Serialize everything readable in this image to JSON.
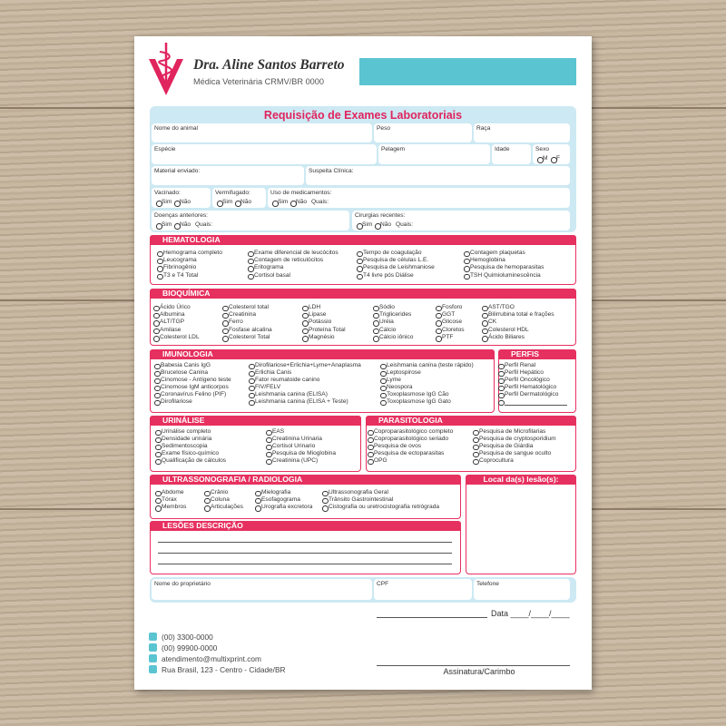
{
  "header": {
    "name": "Dra. Aline Santos Barreto",
    "subtitle": "Médica Veterinária CRMV/BR 0000"
  },
  "form": {
    "title": "Requisição de Exames Laboratoriais",
    "fields": [
      {
        "label": "Nome do animal"
      },
      {
        "label": "Peso"
      },
      {
        "label": "Raça"
      },
      {
        "label": "Espécie"
      },
      {
        "label": "Pelagem"
      },
      {
        "label": "Idade"
      },
      {
        "label": "Sexo",
        "options": [
          "M",
          "F"
        ]
      },
      {
        "label": "Material enviado:"
      },
      {
        "label": "Suspeita Clínica:"
      },
      {
        "label": "Vacinado:",
        "options": [
          "Sim",
          "Não"
        ]
      },
      {
        "label": "Vermifugado:",
        "options": [
          "Sim",
          "Não"
        ]
      },
      {
        "label": "Uso de medicamentos:",
        "options": [
          "Sim",
          "Não"
        ],
        "extra": "Quais:"
      },
      {
        "label": "Doenças anteriores:",
        "options": [
          "Sim",
          "Não"
        ],
        "extra": "Quais:"
      },
      {
        "label": "Cirurgias recentes:",
        "options": [
          "Sim",
          "Não"
        ],
        "extra": "Quais:"
      }
    ]
  },
  "sections": [
    {
      "title": "HEMATOLOGIA",
      "columns": [
        [
          "Hemograma completo",
          "Leucograma",
          "Fibrinogênio",
          "T3 e T4 Total"
        ],
        [
          "Exame diferencial de leucócitos",
          "Contagem de reticulócitos",
          "Eritograma",
          "Cortisol basal"
        ],
        [
          "Tempo de coagulação",
          "Pesquisa de células L.E.",
          "Pesquisa de Leishmaniose",
          "T4 livre pós Diálise"
        ],
        [
          "Contagem plaquetas",
          "Hemoglobina",
          "Pesquisa de hemoparasitas",
          "TSH Quimioluminescência"
        ]
      ]
    },
    {
      "title": "BIOQUÍMICA",
      "columns": [
        [
          "Ácido Úrico",
          "Albumina",
          "ALT/TGP",
          "Amilase",
          "Colesterol LDL"
        ],
        [
          "Colesterol total",
          "Creatinina",
          "Ferro",
          "Fosfase alcalina",
          "Colesterol Total"
        ],
        [
          "LDH",
          "Lipase",
          "Potássio",
          "Proteína Total",
          "Magnésio"
        ],
        [
          "Sódio",
          "Triglicerides",
          "Uréia",
          "Cálcio",
          "Cálcio iônico"
        ],
        [
          "Fosforo",
          "GGT",
          "Glicose",
          "Cloretos",
          "PTF"
        ],
        [
          "AST/TGO",
          "Bilirrubina total e frações",
          "CK",
          "Colesterol HDL",
          "Ácido Biliares"
        ]
      ]
    },
    {
      "title": "IMUNOLOGIA",
      "columns": [
        [
          "Babesia Canis IgG",
          "Brucelose Canina",
          "Cinomose - Antígeno teste",
          "Cinomose IgM anticorpos",
          "Coronavírus Felino (PIF)",
          "Dirofilariose"
        ],
        [
          "Dirofilariose+Erlichia+Lyme+Anaplasma",
          "Erlichia Canis",
          "Fator reumatoide canino",
          "FIV/FELV",
          "Leishmania canina (ELISA)",
          "Leishmania canina (ELISA + Teste)"
        ],
        [
          "Leishmania canina (teste rápido)",
          "Leptospirose",
          "Lyme",
          "Neospora",
          "Toxoplasmose IgG Cão",
          "Toxoplasmose IgG Gato"
        ]
      ]
    },
    {
      "title": "PERFIS",
      "columns": [
        [
          "Perfil Renal",
          "Perfil Hepático",
          "Perfil Oncológico",
          "Perfil Hematológico",
          "Perfil Dermatológico"
        ]
      ]
    },
    {
      "title": "URINÁLISE",
      "columns": [
        [
          "Urinálise completo",
          "Densidade urinária",
          "Sedimentoscopia",
          "Exame físico-químico",
          "Qualificação de cálculos"
        ],
        [
          "EAS",
          "Creatinina Urinaria",
          "Cortisol Urinario",
          "Pesquisa de Mioglobina",
          "Creatinina (UPC)"
        ]
      ]
    },
    {
      "title": "PARASITOLOGIA",
      "columns": [
        [
          "Coproparasitológico completo",
          "Coproparasitológico seriado",
          "Pesquisa de ovos",
          "Pesquisa de ectoparasitas",
          "OPG"
        ],
        [
          "Pesquisa de Microfilarias",
          "Pesquisa de cryptosporidium",
          "Pesquisa de Giárdia",
          "Pesquisa de sangue oculto",
          "Coprocultura"
        ]
      ]
    },
    {
      "title": "ULTRASSONOGRAFIA / RADIOLOGIA",
      "columns": [
        [
          "Abdome",
          "Tórax",
          "Membros"
        ],
        [
          "Crânio",
          "Coluna",
          "Articulações"
        ],
        [
          "Mielografia",
          "Esofagograma",
          "Urografia excretora"
        ],
        [
          "Ultrassonografia Geral",
          "Trânsito Gastrointestinal",
          "Cistografia ou uretrocistografia retrógrada"
        ]
      ]
    }
  ],
  "lesion_map": {
    "title": "Local da(s) lesão(s):"
  },
  "lesions": {
    "title": "LESÕES DESCRIÇÃO"
  },
  "owner_fields": [
    "Nome do proprietário",
    "CPF",
    "Telefone"
  ],
  "signature": {
    "date": "Data ____/____/____",
    "label": "Assinatura/Carimbo"
  },
  "contacts": [
    "(00) 3300-0000",
    "(00) 99900-0000",
    "atendimento@multixprint.com",
    "Rua Brasil, 123 - Centro - Cidade/BR"
  ]
}
